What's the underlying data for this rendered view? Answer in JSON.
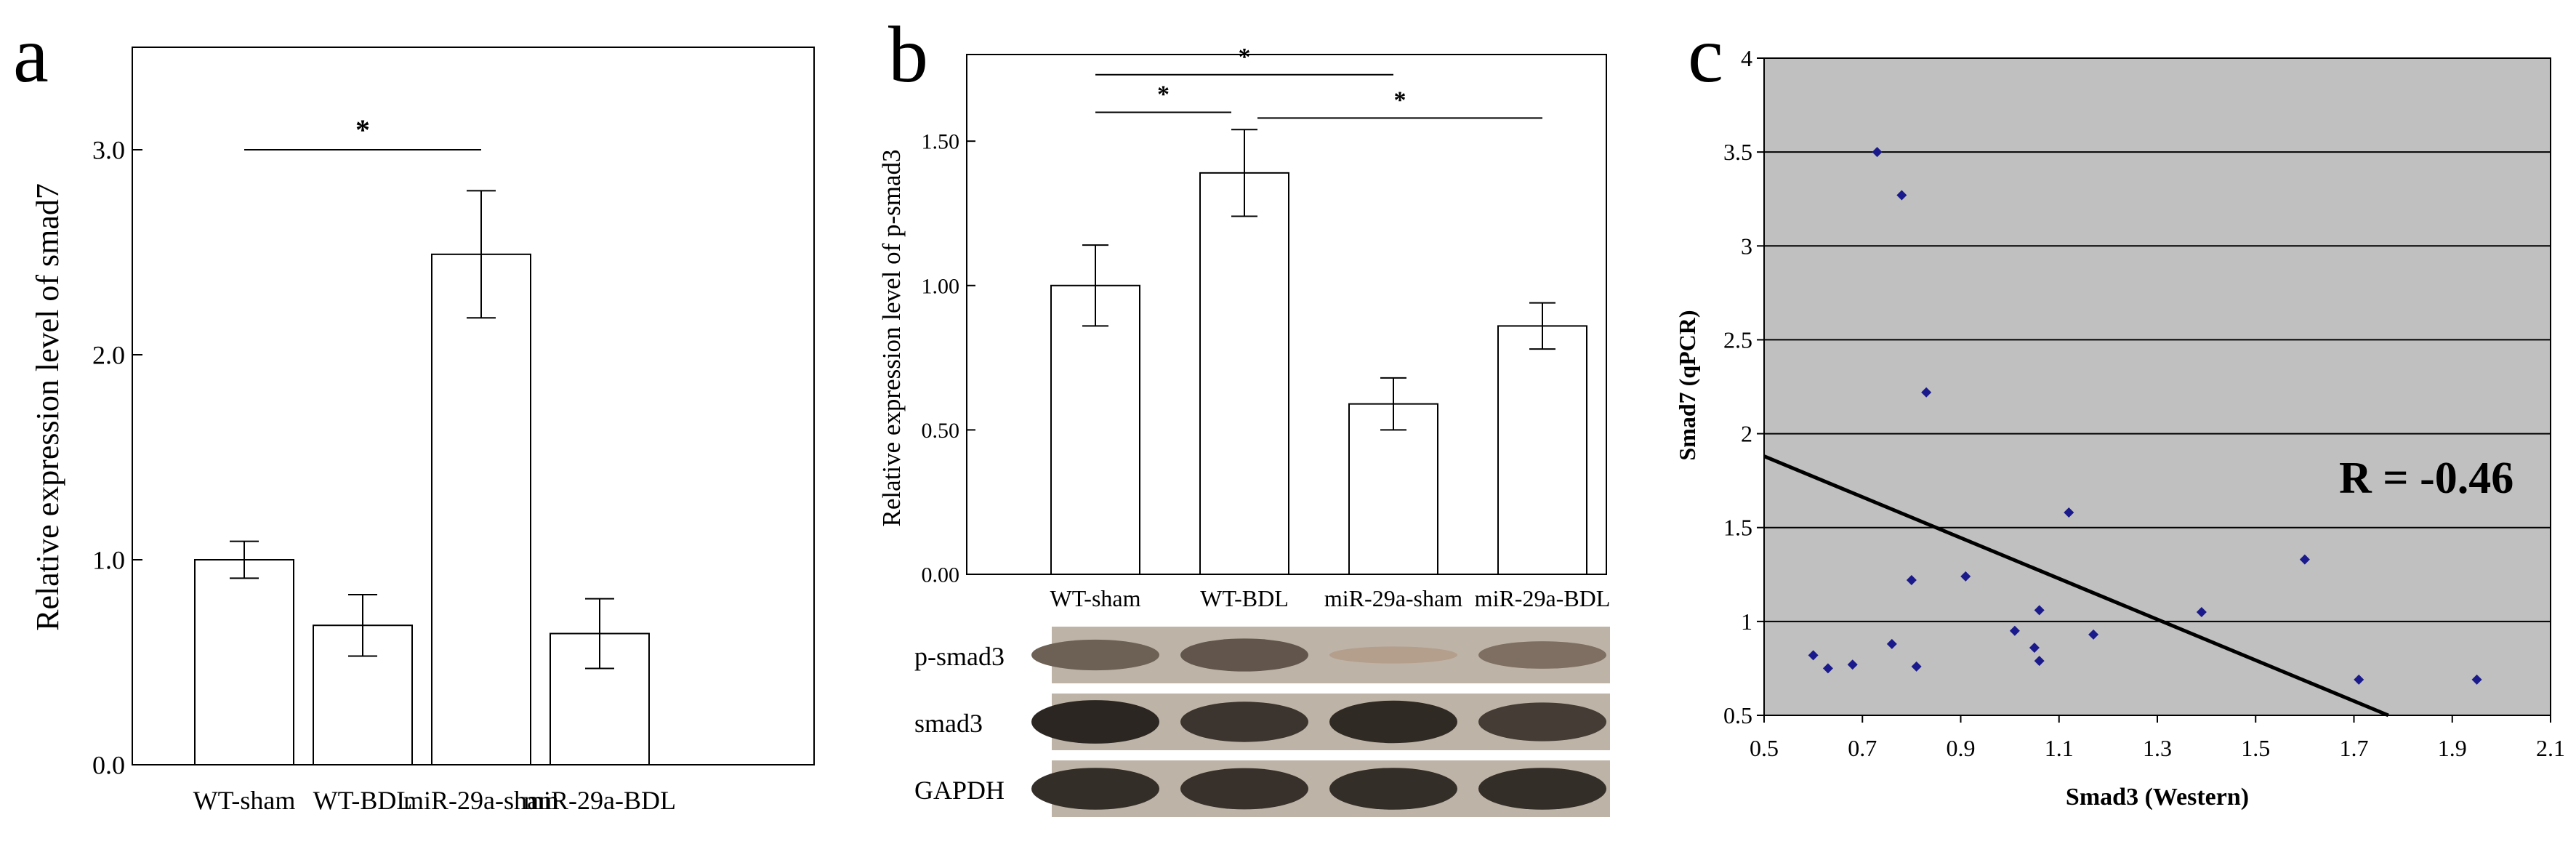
{
  "panels": {
    "a": "a",
    "b": "b",
    "c": "c"
  },
  "chart_data": [
    {
      "panel": "a",
      "type": "bar",
      "title": "",
      "xlabel": "",
      "ylabel": "Relative expression level of smad7",
      "ylim": [
        0,
        3.5
      ],
      "yticks": [
        0,
        1,
        2,
        3
      ],
      "ytick_labels": [
        "0.0",
        "1.0",
        "2.0",
        "3.0"
      ],
      "categories": [
        "WT-sham",
        "WT-BDL",
        "miR-29a-sham",
        "miR-29a-BDL"
      ],
      "values": [
        1.0,
        0.68,
        2.49,
        0.64
      ],
      "errors": [
        0.09,
        0.15,
        0.31,
        0.17
      ],
      "significance": [
        {
          "from": 0,
          "to": 2,
          "level": 3.0,
          "label": "*"
        }
      ],
      "grid": false
    },
    {
      "panel": "b",
      "type": "bar",
      "title": "",
      "xlabel": "",
      "ylabel": "Relative expression level of p-smad3",
      "ylim": [
        0,
        1.8
      ],
      "yticks": [
        0,
        0.5,
        1.0,
        1.5
      ],
      "ytick_labels": [
        "0.00",
        "0.50",
        "1.00",
        "1.50"
      ],
      "categories": [
        "WT-sham",
        "WT-BDL",
        "miR-29a-sham",
        "miR-29a-BDL"
      ],
      "values": [
        1.0,
        1.39,
        0.59,
        0.86
      ],
      "errors": [
        0.14,
        0.15,
        0.09,
        0.08
      ],
      "significance": [
        {
          "from": 0,
          "to": 2,
          "level": 1.73,
          "label": "*"
        },
        {
          "from": 0,
          "to": 1,
          "level": 1.6,
          "label": "*"
        },
        {
          "from": 1,
          "to": 3,
          "level": 1.58,
          "label": "*"
        }
      ],
      "grid": false
    },
    {
      "panel": "c",
      "type": "scatter",
      "title": "",
      "xlabel": "Smad3 (Western)",
      "ylabel": "Smad7 (qPCR)",
      "xlim": [
        0.5,
        2.1
      ],
      "ylim": [
        0.5,
        4
      ],
      "xticks": [
        0.5,
        0.7,
        0.9,
        1.1,
        1.3,
        1.5,
        1.7,
        1.9,
        2.1
      ],
      "xtick_labels": [
        "0.5",
        "0.7",
        "0.9",
        "1.1",
        "1.3",
        "1.5",
        "1.7",
        "1.9",
        "2.1"
      ],
      "yticks": [
        0.5,
        1,
        1.5,
        2,
        2.5,
        3,
        3.5,
        4
      ],
      "ytick_labels": [
        "0.5",
        "1",
        "1.5",
        "2",
        "2.5",
        "3",
        "3.5",
        "4"
      ],
      "points": [
        {
          "x": 0.6,
          "y": 0.82
        },
        {
          "x": 0.63,
          "y": 0.75
        },
        {
          "x": 0.68,
          "y": 0.77
        },
        {
          "x": 0.73,
          "y": 3.5
        },
        {
          "x": 0.76,
          "y": 0.88
        },
        {
          "x": 0.78,
          "y": 3.27
        },
        {
          "x": 0.8,
          "y": 1.22
        },
        {
          "x": 0.81,
          "y": 0.76
        },
        {
          "x": 0.83,
          "y": 2.22
        },
        {
          "x": 0.91,
          "y": 1.24
        },
        {
          "x": 1.01,
          "y": 0.95
        },
        {
          "x": 1.05,
          "y": 0.86
        },
        {
          "x": 1.06,
          "y": 0.79
        },
        {
          "x": 1.06,
          "y": 1.06
        },
        {
          "x": 1.12,
          "y": 1.58
        },
        {
          "x": 1.17,
          "y": 0.93
        },
        {
          "x": 1.39,
          "y": 1.05
        },
        {
          "x": 1.6,
          "y": 1.33
        },
        {
          "x": 1.71,
          "y": 0.69
        },
        {
          "x": 1.95,
          "y": 0.69
        }
      ],
      "trendline": {
        "x": [
          0.5,
          1.77
        ],
        "y": [
          1.88,
          0.5
        ]
      },
      "annotation": "R = -0.46",
      "plot_background": "#c0c0c0",
      "point_color": "#1a1a8c",
      "grid": true,
      "gridlines": "horizontal"
    }
  ],
  "western_blot": {
    "rows": [
      {
        "label": "p-smad3",
        "intensity": [
          0.55,
          0.62,
          0.12,
          0.45
        ]
      },
      {
        "label": "smad3",
        "intensity": [
          0.95,
          0.85,
          0.92,
          0.8
        ]
      },
      {
        "label": "GAPDH",
        "intensity": [
          0.9,
          0.88,
          0.9,
          0.9
        ]
      }
    ]
  }
}
